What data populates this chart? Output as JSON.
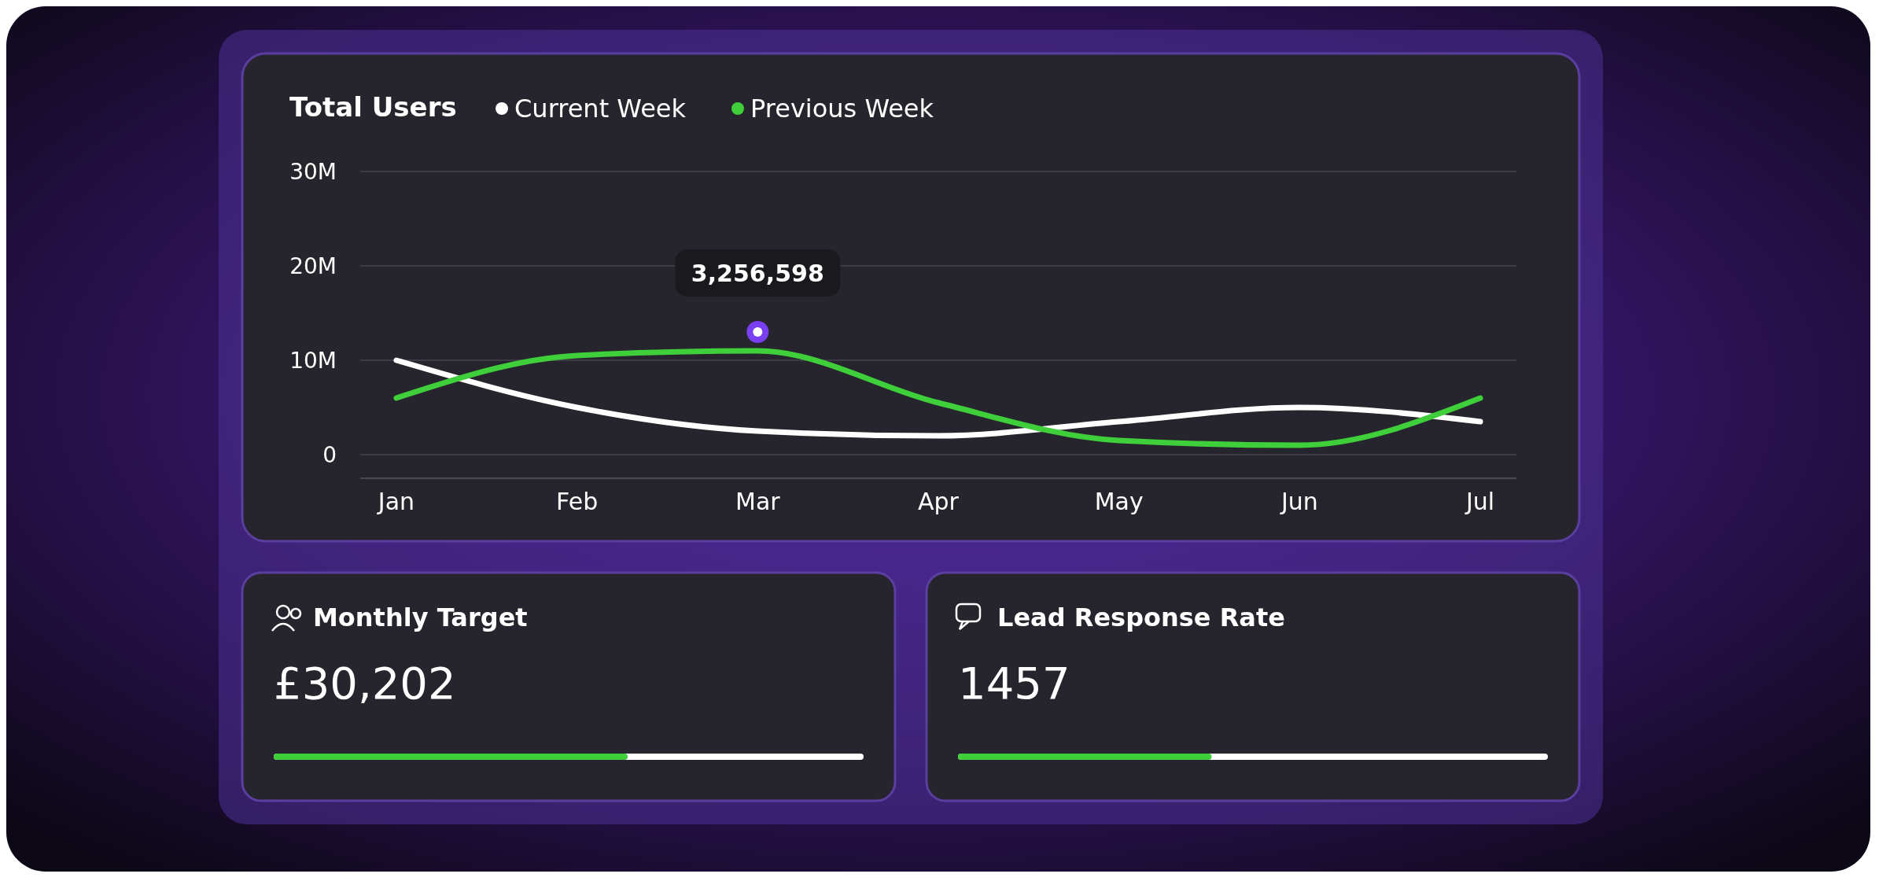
{
  "chart_data": [
    {
      "type": "line",
      "title": "Total Users",
      "categories": [
        "Jan",
        "Feb",
        "Mar",
        "Apr",
        "May",
        "Jun",
        "Jul"
      ],
      "series": [
        {
          "name": "Current Week",
          "color": "#ffffff",
          "values": [
            10,
            5,
            2.5,
            2,
            3.5,
            5,
            3.5
          ]
        },
        {
          "name": "Previous Week",
          "color": "#3ecf3a",
          "values": [
            6,
            10.5,
            11,
            5.5,
            1.5,
            1,
            6
          ]
        }
      ],
      "ylim": [
        0,
        30
      ],
      "yticks": [
        {
          "value": 0,
          "label": "0"
        },
        {
          "value": 10,
          "label": "10M"
        },
        {
          "value": 20,
          "label": "20M"
        },
        {
          "value": 30,
          "label": "30M"
        }
      ],
      "grid": "y",
      "legend": "top",
      "marker": "none",
      "line_style": "solid",
      "annotations": [
        {
          "text": "3,256,598",
          "x": "Mar",
          "y": 13
        }
      ]
    },
    {
      "type": "other",
      "title": "Monthly Target",
      "annotations": [
        "£30,202"
      ]
    },
    {
      "type": "other",
      "title": "Lead Response Rate",
      "annotations": [
        "1457"
      ]
    }
  ]
}
